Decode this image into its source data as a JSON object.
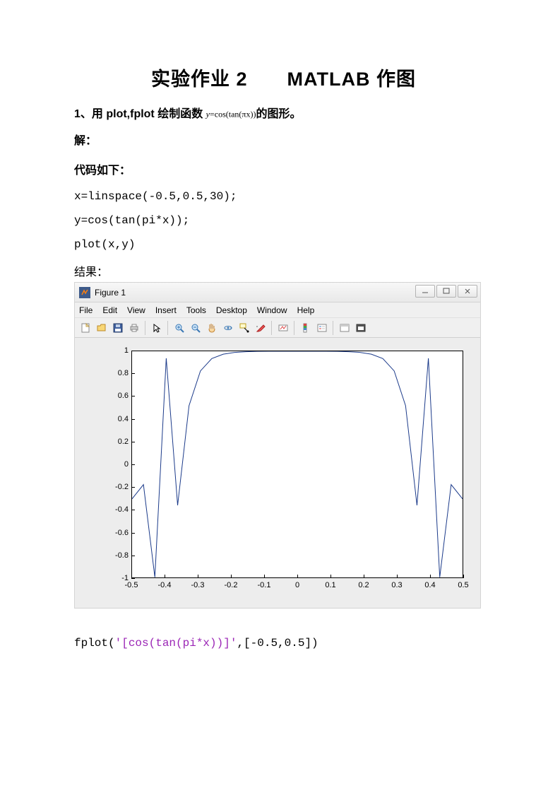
{
  "title": "实验作业 2  MATLAB 作图",
  "question_prefix": "1、用 plot,fplot 绘制函数 ",
  "question_formula_y": "y",
  "question_formula_rest": "=cos(tan(πx))",
  "question_suffix": "的图形。",
  "solution_label": "解：",
  "code_label": "代码如下：",
  "code_line1": "x=linspace(-0.5,0.5,30);",
  "code_line2": " y=cos(tan(pi*x));",
  "code_line3": " plot(x,y)",
  "result_label": "结果：",
  "code_line4_pre": "fplot(",
  "code_line4_str": "'[cos(tan(pi*x))]'",
  "code_line4_post": ",[-0.5,0.5])",
  "figure_window": {
    "title": "Figure 1",
    "menus": [
      "File",
      "Edit",
      "View",
      "Insert",
      "Tools",
      "Desktop",
      "Window",
      "Help"
    ],
    "min_symbol": "−",
    "max_symbol": "▢",
    "close_symbol": "✕",
    "toolbar_icons": [
      "new",
      "open",
      "save",
      "print",
      "sep",
      "pointer",
      "sep",
      "zoom-in",
      "zoom-out",
      "pan",
      "rotate3d",
      "datacursor",
      "brush",
      "sep",
      "link",
      "sep",
      "insert-colorbar",
      "insert-legend",
      "sep",
      "hide-tools",
      "dock"
    ]
  },
  "chart": {
    "type": "line",
    "xlim": [
      -0.5,
      0.5
    ],
    "ylim": [
      -1,
      1
    ],
    "xticks": [
      -0.5,
      -0.4,
      -0.3,
      -0.2,
      -0.1,
      0,
      0.1,
      0.2,
      0.3,
      0.4,
      0.5
    ],
    "yticks": [
      -1,
      -0.8,
      -0.6,
      -0.4,
      -0.2,
      0,
      0.2,
      0.4,
      0.6,
      0.8,
      1
    ],
    "background_color": "#ededed",
    "axes_background": "#ffffff",
    "axes_border_color": "#000000",
    "line_color": "#1b3a8a",
    "line_width": 1,
    "tick_fontsize": 11,
    "x_values": [
      -0.5,
      -0.4655,
      -0.431,
      -0.3966,
      -0.3621,
      -0.3276,
      -0.2931,
      -0.2586,
      -0.2241,
      -0.1897,
      -0.1552,
      -0.1207,
      -0.0862,
      -0.0517,
      -0.0172,
      0.0172,
      0.0517,
      0.0862,
      0.1207,
      0.1552,
      0.1897,
      0.2241,
      0.2586,
      0.2931,
      0.3276,
      0.3621,
      0.3966,
      0.431,
      0.4655,
      0.5
    ],
    "y_values": [
      -0.305,
      -0.179,
      -0.998,
      0.938,
      -0.362,
      0.519,
      0.826,
      0.936,
      0.974,
      0.99,
      0.996,
      0.999,
      1.0,
      1.0,
      1.0,
      1.0,
      1.0,
      1.0,
      0.999,
      0.996,
      0.99,
      0.974,
      0.936,
      0.826,
      0.519,
      -0.362,
      0.938,
      -0.998,
      -0.179,
      -0.305
    ]
  }
}
